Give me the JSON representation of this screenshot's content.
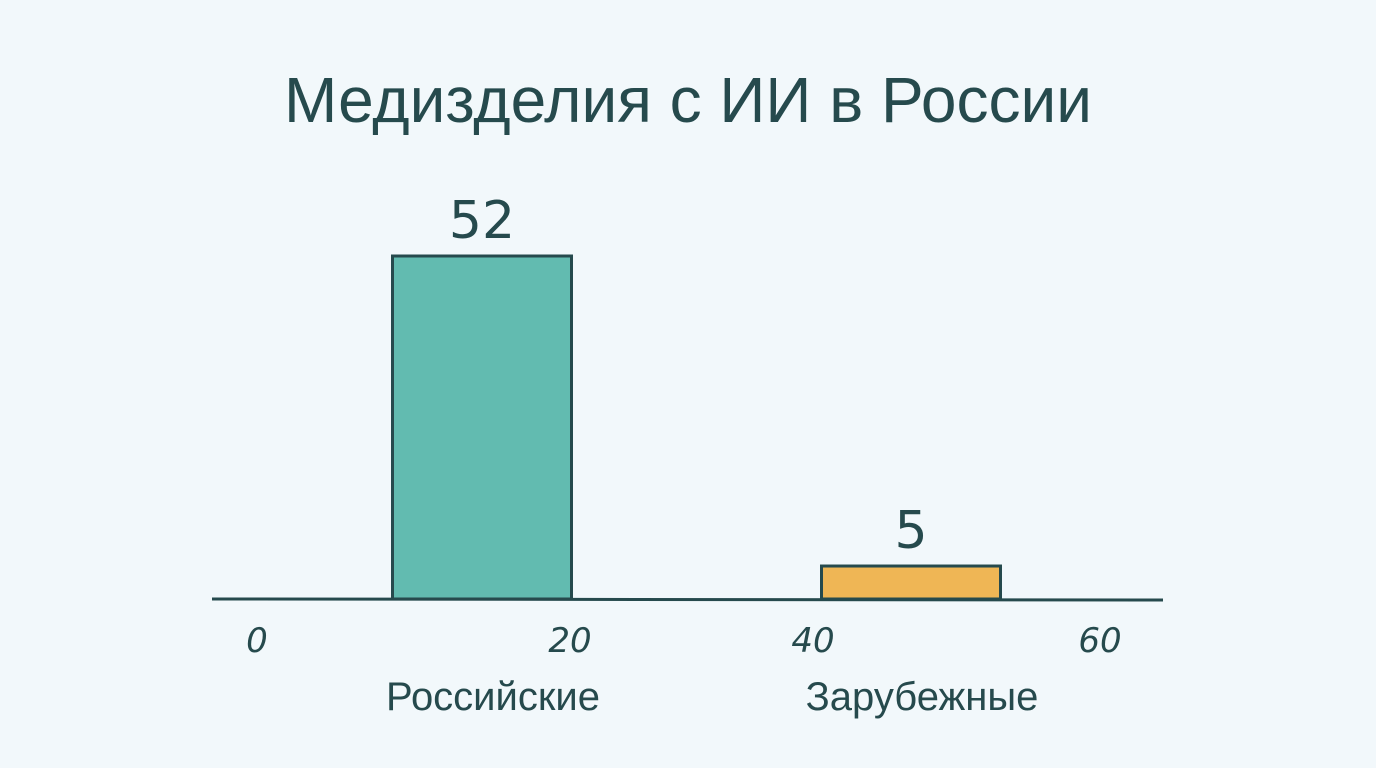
{
  "chart_data": {
    "type": "bar",
    "title": "Медизделия с ИИ в России",
    "categories": [
      "Российские",
      "Зарубежные"
    ],
    "values": [
      52,
      5
    ],
    "colors": [
      "#62bbb0",
      "#efb655"
    ],
    "x_ticks": [
      "0",
      "20",
      "40",
      "60"
    ],
    "xlabel": "",
    "ylabel": "",
    "grid": false
  }
}
